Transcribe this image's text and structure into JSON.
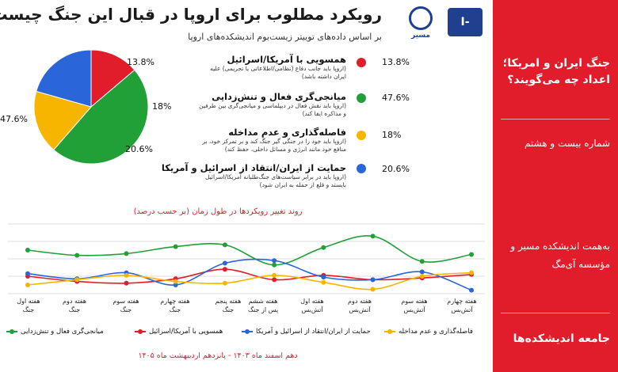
{
  "header": {
    "title": "رویکرد مطلوب برای اروپا در قبال این جنگ چیست؟",
    "subtitle": "بر اساس داده‌های توییتر زیست‌بوم اندیشکده‌های اروپا",
    "logo_left_text": "I-MAG",
    "logo_right_text": "مسیر"
  },
  "sidebar": {
    "headline": "جنگ ایران و امریکا؛ اعداد چه می‌گویند؟",
    "issue": "شماره بیست و هشتم",
    "credit": "به‌همت اندیشکده مسیر و مؤسسه آی‌مگ",
    "footer": "جامعه اندیشکده‌ها"
  },
  "colors": {
    "red": "#e21d2b",
    "green": "#22a038",
    "yellow": "#f7b500",
    "blue": "#2a66d8"
  },
  "legend": [
    {
      "title": "همسویی با آمریکا/اسرائیل",
      "desc": "(اروپا باید جانب دفاع (نظامی/اطلاعاتی یا تحریمی) علیه ایران داشته باشد)",
      "value": "13.8%",
      "color": "#e21d2b"
    },
    {
      "title": "میانجی‌گری فعال و تنش‌زدایی",
      "desc": "(اروپا باید نقش فعال در دیپلماسی و میانجی‌گری بین طرفین و مذاکره ایفا کند)",
      "value": "47.6%",
      "color": "#22a038"
    },
    {
      "title": "فاصله‌گذاری و عدم مداخله",
      "desc": "(اروپا باید خود را در جنگی گیر جنگ کند و بر تمرکز خود، بر منافع خود مانند انرژی و مسائل داخلی، حفظ کند)",
      "value": "18%",
      "color": "#f7b500"
    },
    {
      "title": "حمایت از ایران/انتقاد از اسرائیل و آمریکا",
      "desc": "(اروپا باید در برابر سیاست‌های جنگ‌طلبانه آمریکا/اسرائیل بایستد و قلع از حمله به ایران شود)",
      "value": "20.6%",
      "color": "#2a66d8"
    }
  ],
  "pie_labels": {
    "red": "13.8%",
    "green": "47.6%",
    "yellow": "18%",
    "blue": "20.6%"
  },
  "line_chart": {
    "title": "روند تغییر رویکردها در طول زمان (بر حسب درصد)",
    "date_range": "دهم اسفند ماه ۱۴۰۳ - پانزدهم اردیبهشت ماه ۱۴۰۵",
    "series_labels": {
      "green": "میانجی‌گری فعال و تنش‌زدایی",
      "red": "همسویی با آمریکا/اسرائیل",
      "blue": "حمایت از ایران/انتقاد از اسرائیل و آمریکا",
      "yellow": "فاصله‌گذاری و عدم مداخله"
    },
    "x_labels": [
      [
        "هفته اول",
        "جنگ"
      ],
      [
        "هفته دوم",
        "جنگ"
      ],
      [
        "هفته سوم",
        "جنگ"
      ],
      [
        "هفته چهارم",
        "جنگ"
      ],
      [
        "هفته پنجم",
        "جنگ"
      ],
      [
        "هفته ششم",
        "پس از جنگ"
      ],
      [
        "هفته اول",
        "آتش‌بس"
      ],
      [
        "هفته دوم",
        "آتش‌بس"
      ],
      [
        "هفته سوم",
        "آتش‌بس"
      ],
      [
        "هفته چهارم",
        "آتش‌بس"
      ]
    ]
  },
  "chart_data": [
    {
      "type": "pie",
      "categories": [
        "همسویی با آمریکا/اسرائیل",
        "میانجی‌گری فعال و تنش‌زدایی",
        "فاصله‌گذاری و عدم مداخله",
        "حمایت از ایران/انتقاد از اسرائیل و آمریکا"
      ],
      "values": [
        13.8,
        47.6,
        18,
        20.6
      ],
      "colors": [
        "#e21d2b",
        "#22a038",
        "#f7b500",
        "#2a66d8"
      ]
    },
    {
      "type": "line",
      "x": [
        "هفته اول جنگ",
        "هفته دوم جنگ",
        "هفته سوم جنگ",
        "هفته چهارم جنگ",
        "هفته پنجم جنگ",
        "هفته ششم پس از جنگ",
        "هفته اول آتش‌بس",
        "هفته دوم آتش‌بس",
        "هفته سوم آتش‌بس",
        "هفته چهارم آتش‌بس"
      ],
      "ylim": [
        0,
        80
      ],
      "grid": true,
      "legend_position": "bottom",
      "series": [
        {
          "name": "میانجی‌گری فعال و تنش‌زدایی",
          "color": "#22a038",
          "values": [
            50,
            44,
            46,
            54,
            56,
            33,
            53,
            66,
            37,
            45
          ]
        },
        {
          "name": "همسویی با آمریکا/اسرائیل",
          "color": "#e21d2b",
          "values": [
            20,
            14,
            12,
            17,
            28,
            16,
            21,
            16,
            18,
            22
          ]
        },
        {
          "name": "حمایت از ایران/انتقاد از اسرائیل و آمریکا",
          "color": "#2a66d8",
          "values": [
            23,
            17,
            24,
            10,
            35,
            38,
            19,
            16,
            25,
            4
          ]
        },
        {
          "name": "فاصله‌گذاری و عدم مداخله",
          "color": "#f7b500",
          "values": [
            10,
            16,
            21,
            14,
            12,
            21,
            13,
            5,
            20,
            24
          ]
        }
      ]
    }
  ]
}
